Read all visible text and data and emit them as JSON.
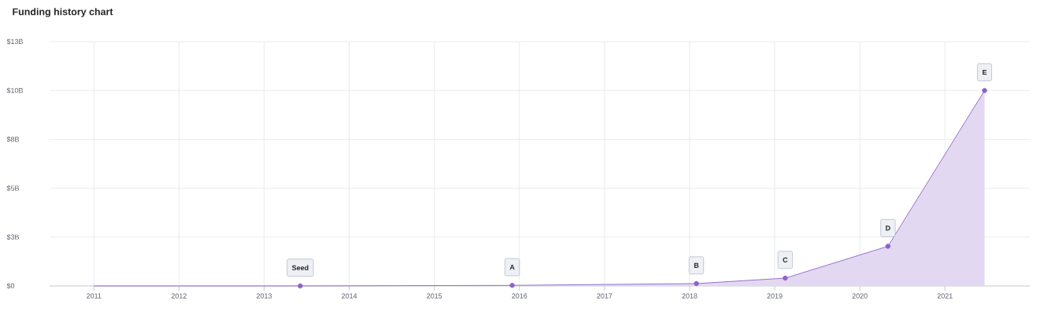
{
  "chart_data": {
    "type": "area",
    "title": "Funding history chart",
    "xlim": [
      "2010-06-25",
      "2021-12-31"
    ],
    "xticks": [
      "2011",
      "2012",
      "2013",
      "2014",
      "2015",
      "2016",
      "2017",
      "2018",
      "2019",
      "2020",
      "2021"
    ],
    "ylim": [
      0,
      12.5
    ],
    "yticks": [
      {
        "value": 0,
        "label": "$0"
      },
      {
        "value": 2.5,
        "label": "$3B"
      },
      {
        "value": 5,
        "label": "$5B"
      },
      {
        "value": 7.5,
        "label": "$8B"
      },
      {
        "value": 10,
        "label": "$10B"
      },
      {
        "value": 12.5,
        "label": "$13B"
      }
    ],
    "grid": true,
    "series": [
      {
        "color": "#8e62c8",
        "x": [
          "2011-01-01",
          "2013-06-05",
          "2015-12-01",
          "2018-01-30",
          "2019-02-15",
          "2020-05-01",
          "2021-06-20"
        ],
        "values": [
          0,
          0,
          0.03,
          0.12,
          0.4,
          2.03,
          10
        ]
      },
      {
        "type": "scatter",
        "marker": "circle",
        "color": "#8e62c8",
        "x": [
          "2013-06-05",
          "2015-12-01",
          "2018-01-30",
          "2019-02-15",
          "2020-05-01",
          "2021-06-20"
        ],
        "values": [
          0,
          0.03,
          0.12,
          0.4,
          2.03,
          10
        ]
      }
    ],
    "annotations": [
      {
        "text": "Seed",
        "x": "2013-06-05",
        "y": 0
      },
      {
        "text": "A",
        "x": "2015-12-01",
        "y": 0.03
      },
      {
        "text": "B",
        "x": "2018-01-30",
        "y": 0.12
      },
      {
        "text": "C",
        "x": "2019-02-15",
        "y": 0.4
      },
      {
        "text": "D",
        "x": "2020-05-01",
        "y": 2.03
      },
      {
        "text": "E",
        "x": "2021-06-20",
        "y": 10
      }
    ]
  }
}
